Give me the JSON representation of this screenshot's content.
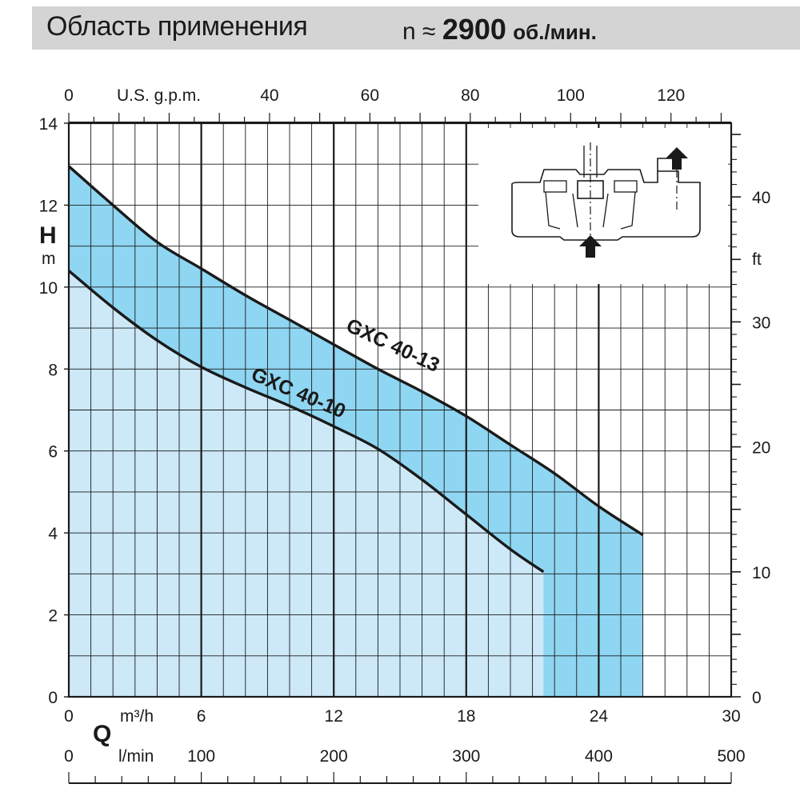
{
  "header": {
    "title": "Область применения",
    "speed_prefix": "n ≈",
    "speed_value": "2900",
    "speed_unit": "об./мин."
  },
  "chart_data": {
    "type": "area",
    "title": "Область применения  n ≈ 2900 об./мин.",
    "axes": {
      "x_m3h": {
        "label": "m³/h",
        "ticks": [
          "0",
          "6",
          "12",
          "18",
          "24",
          "30"
        ],
        "range": [
          0,
          30
        ],
        "symbol": "Q"
      },
      "x_lmin": {
        "label": "l/min",
        "ticks": [
          "0",
          "100",
          "200",
          "300",
          "400",
          "500"
        ],
        "range": [
          0,
          500
        ]
      },
      "x_gpm": {
        "label": "U.S. g.p.m.",
        "ticks": [
          "0",
          "40",
          "60",
          "80",
          "100",
          "120"
        ],
        "range": [
          0,
          132
        ]
      },
      "y_m": {
        "label": "m",
        "symbol": "H",
        "ticks": [
          "0",
          "2",
          "4",
          "6",
          "8",
          "10",
          "12",
          "14"
        ],
        "range": [
          0,
          14
        ]
      },
      "y_ft": {
        "label": "ft",
        "ticks": [
          "0",
          "10",
          "20",
          "30",
          "40"
        ],
        "range": [
          0,
          45.9
        ]
      }
    },
    "grid": true,
    "series": [
      {
        "name": "GXC 40-10",
        "x": [
          0,
          2,
          4,
          6,
          8,
          10,
          12,
          14,
          16,
          18,
          20,
          21.5
        ],
        "y": [
          10.4,
          9.5,
          8.7,
          8.05,
          7.55,
          7.1,
          6.6,
          6.05,
          5.3,
          4.45,
          3.6,
          3.05
        ]
      },
      {
        "name": "GXC 40-13",
        "x": [
          0,
          2,
          4,
          6,
          8,
          10,
          12,
          14,
          16,
          18,
          20,
          22,
          24,
          26
        ],
        "y": [
          12.95,
          12.0,
          11.1,
          10.45,
          9.8,
          9.2,
          8.6,
          8.0,
          7.45,
          6.85,
          6.15,
          5.45,
          4.65,
          3.95
        ]
      }
    ]
  }
}
